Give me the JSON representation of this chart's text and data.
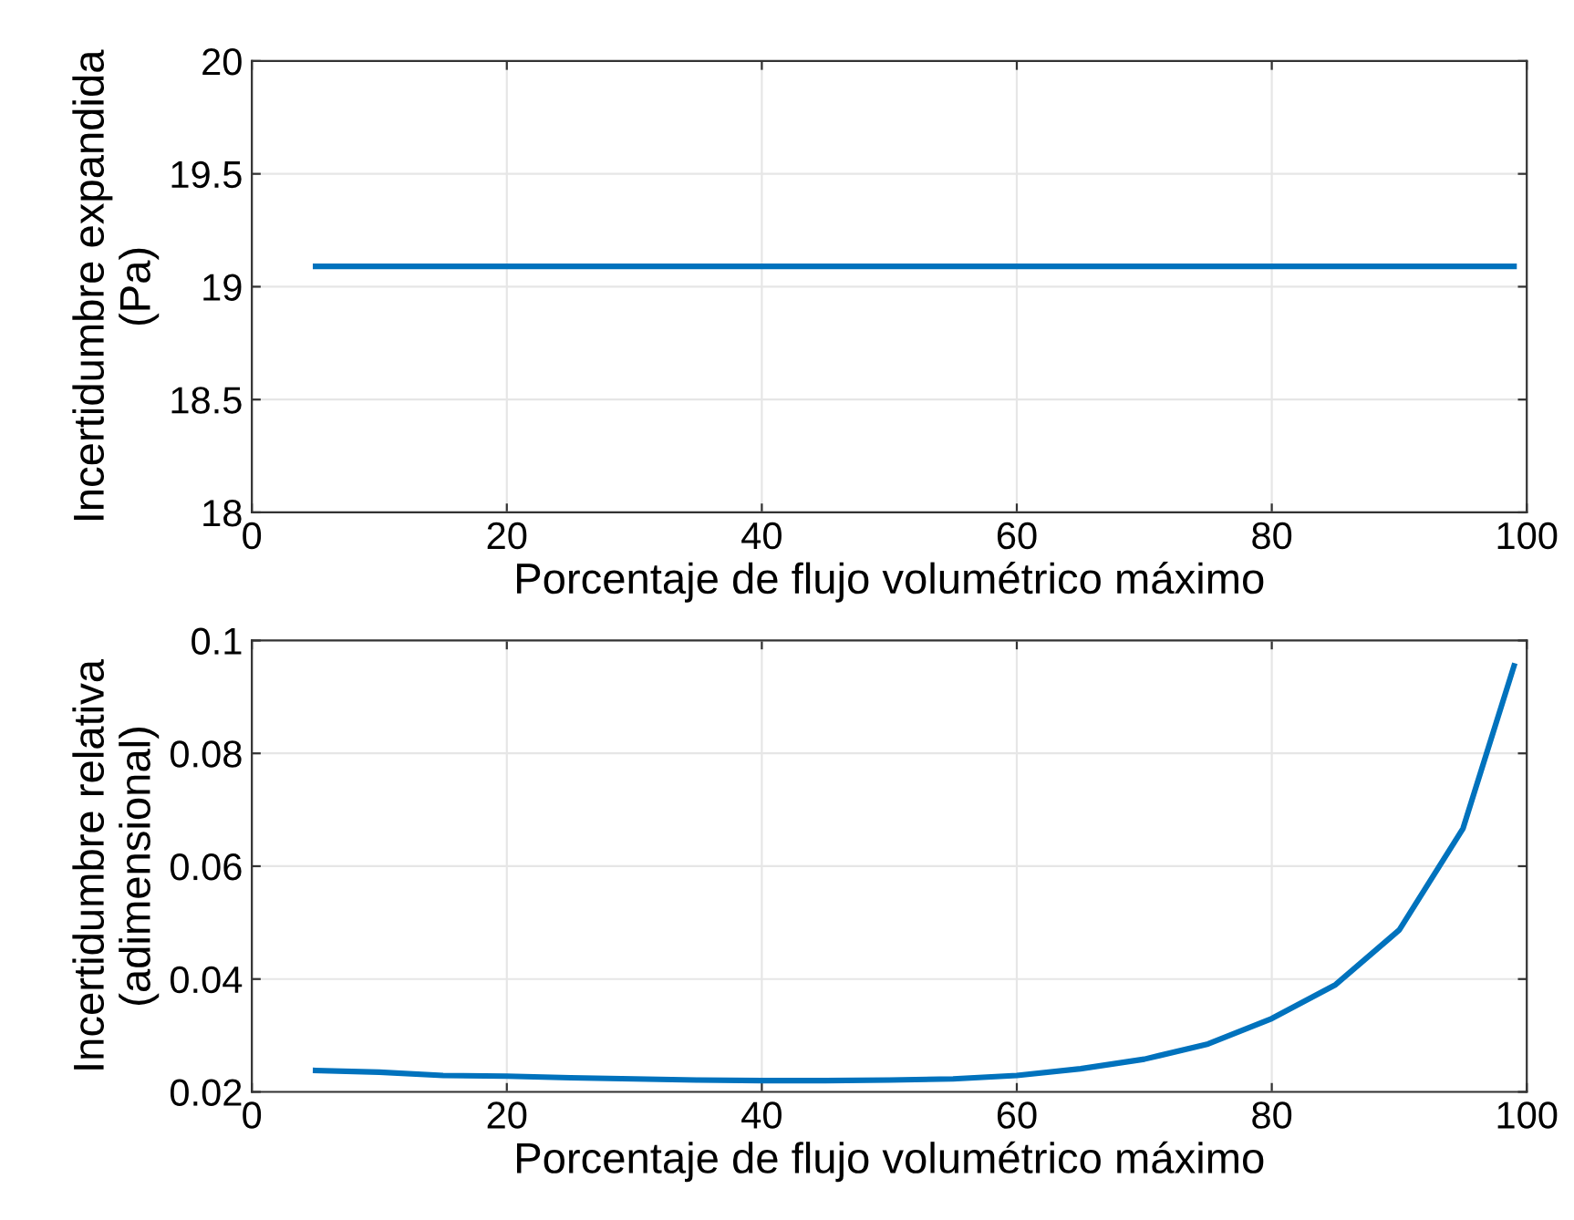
{
  "chart_data": [
    {
      "type": "line",
      "xlabel": "Porcentaje de flujo volumétrico máximo",
      "ylabel": "Incertidumbre expandida\n(Pa)",
      "x": [
        5,
        99
      ],
      "series": [
        {
          "color": "#0072bd",
          "values": [
            19.09,
            19.09
          ]
        }
      ],
      "xlim": [
        0,
        100
      ],
      "xticks": [
        0,
        20,
        40,
        60,
        80,
        100
      ],
      "ylim": [
        18,
        20
      ],
      "yticks": [
        18,
        18.5,
        19,
        19.5,
        20
      ],
      "grid": true
    },
    {
      "type": "line",
      "xlabel": "Porcentaje de flujo volumétrico máximo",
      "ylabel": "Incertidumbre relativa\n(adimensional)",
      "x": [
        5,
        10,
        15,
        20,
        25,
        30,
        35,
        40,
        45,
        50,
        55,
        60,
        65,
        70,
        75,
        80,
        85,
        90,
        95,
        99
      ],
      "series": [
        {
          "color": "#0072bd",
          "values": [
            0.0238,
            0.0235,
            0.0229,
            0.0228,
            0.0225,
            0.0223,
            0.0221,
            0.022,
            0.022,
            0.0221,
            0.0223,
            0.0229,
            0.0241,
            0.0258,
            0.0285,
            0.033,
            0.039,
            0.0487,
            0.0667,
            0.0955
          ]
        }
      ],
      "xlim": [
        0,
        100
      ],
      "xticks": [
        0,
        20,
        40,
        60,
        80,
        100
      ],
      "ylim": [
        0.02,
        0.1
      ],
      "yticks": [
        0.02,
        0.04,
        0.06,
        0.08,
        0.1
      ],
      "grid": true
    }
  ]
}
